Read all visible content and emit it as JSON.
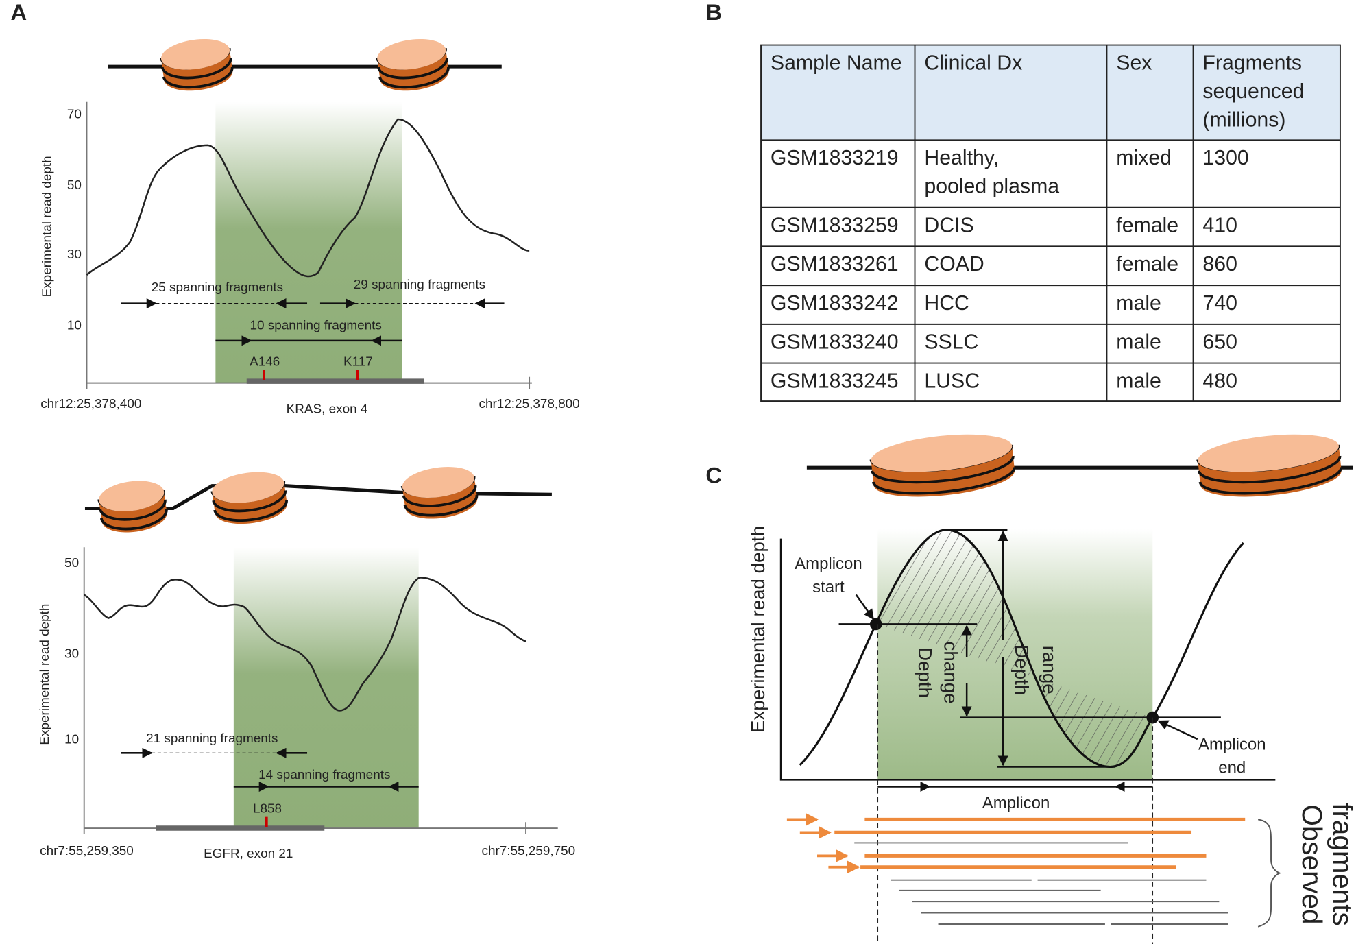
{
  "panel_a": {
    "label": "A",
    "kras": {
      "y_axis_label": "Experimental read depth",
      "yticks": [
        70,
        50,
        30,
        10
      ],
      "fragments": [
        "25 spanning fragments",
        "29 spanning fragments",
        "10 spanning fragments"
      ],
      "mutations": [
        "A146",
        "K117"
      ],
      "x_start": "chr12:25,378,400",
      "x_end": "chr12:25,378,800",
      "region": "KRAS, exon 4"
    },
    "egfr": {
      "y_axis_label": "Experimental read depth",
      "yticks": [
        50,
        30,
        10
      ],
      "fragments": [
        "21 spanning fragments",
        "14 spanning fragments"
      ],
      "mutations": [
        "L858"
      ],
      "x_start": "chr7:55,259,350",
      "x_end": "chr7:55,259,750",
      "region": "EGFR, exon 21"
    }
  },
  "panel_b": {
    "label": "B",
    "table": {
      "header": [
        "Sample Name",
        "Clinical Dx",
        "Sex",
        [
          "Fragments",
          "sequenced",
          "(millions)"
        ]
      ],
      "rows": [
        [
          "GSM1833219",
          [
            "Healthy,",
            "pooled plasma"
          ],
          "mixed",
          1300
        ],
        [
          "GSM1833259",
          "DCIS",
          "female",
          410
        ],
        [
          "GSM1833261",
          "COAD",
          "female",
          860
        ],
        [
          "GSM1833242",
          "HCC",
          "male",
          740
        ],
        [
          "GSM1833240",
          "SSLC",
          "male",
          650
        ],
        [
          "GSM1833245",
          "LUSC",
          "male",
          480
        ]
      ]
    }
  },
  "panel_c": {
    "label": "C",
    "y_axis_label": "Experimental read depth",
    "amplicon_start": [
      "Amplicon",
      "start"
    ],
    "amplicon_end": [
      "Amplicon",
      "end"
    ],
    "depth_change": [
      "Depth",
      "change"
    ],
    "depth_range": [
      "Depth",
      "range"
    ],
    "amplicon": "Amplicon",
    "observed_fragments": [
      "Observed",
      "fragments"
    ]
  }
}
